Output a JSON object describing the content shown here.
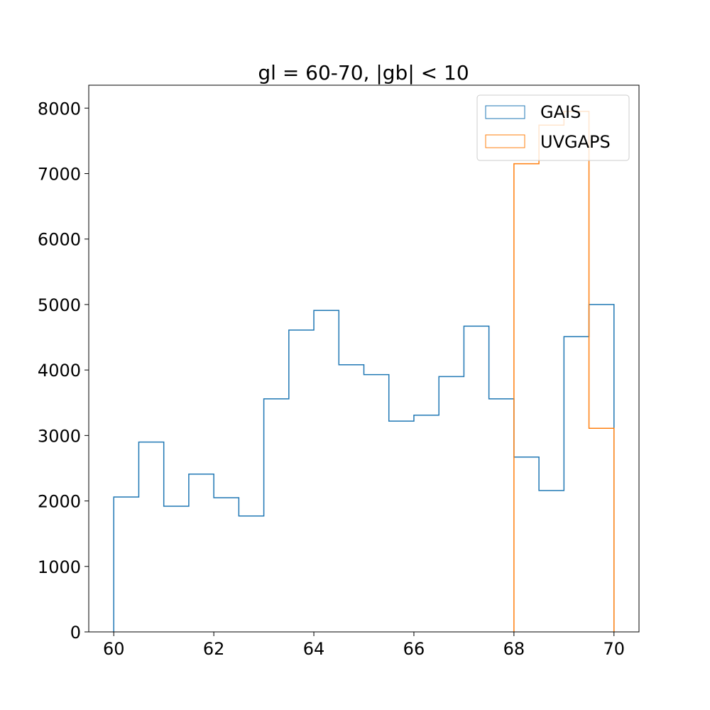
{
  "chart_data": {
    "type": "histogram",
    "title": "gl = 60-70, |gb| < 10",
    "xlabel": "",
    "ylabel": "",
    "xlim": [
      59.5,
      70.5
    ],
    "ylim": [
      0,
      8350
    ],
    "xticks": [
      60,
      62,
      64,
      66,
      68,
      70
    ],
    "yticks": [
      0,
      1000,
      2000,
      3000,
      4000,
      5000,
      6000,
      7000,
      8000
    ],
    "bin_edges": [
      60,
      60.5,
      61,
      61.5,
      62,
      62.5,
      63,
      63.5,
      64,
      64.5,
      65,
      65.5,
      66,
      66.5,
      67,
      67.5,
      68,
      68.5,
      69,
      69.5,
      70
    ],
    "grid": false,
    "legend_position": "top-right",
    "series": [
      {
        "name": "GAIS",
        "color": "#1f77b4",
        "counts": [
          2060,
          2900,
          1920,
          2410,
          2050,
          1770,
          3560,
          4610,
          4910,
          4080,
          3930,
          3220,
          3310,
          3900,
          4670,
          3560,
          2670,
          2160,
          4510,
          5000
        ]
      },
      {
        "name": "UVGAPS",
        "color": "#ff7f0e",
        "counts": [
          0,
          0,
          0,
          0,
          0,
          0,
          0,
          0,
          0,
          0,
          0,
          0,
          0,
          0,
          0,
          0,
          7150,
          7740,
          7950,
          3110
        ]
      }
    ]
  }
}
